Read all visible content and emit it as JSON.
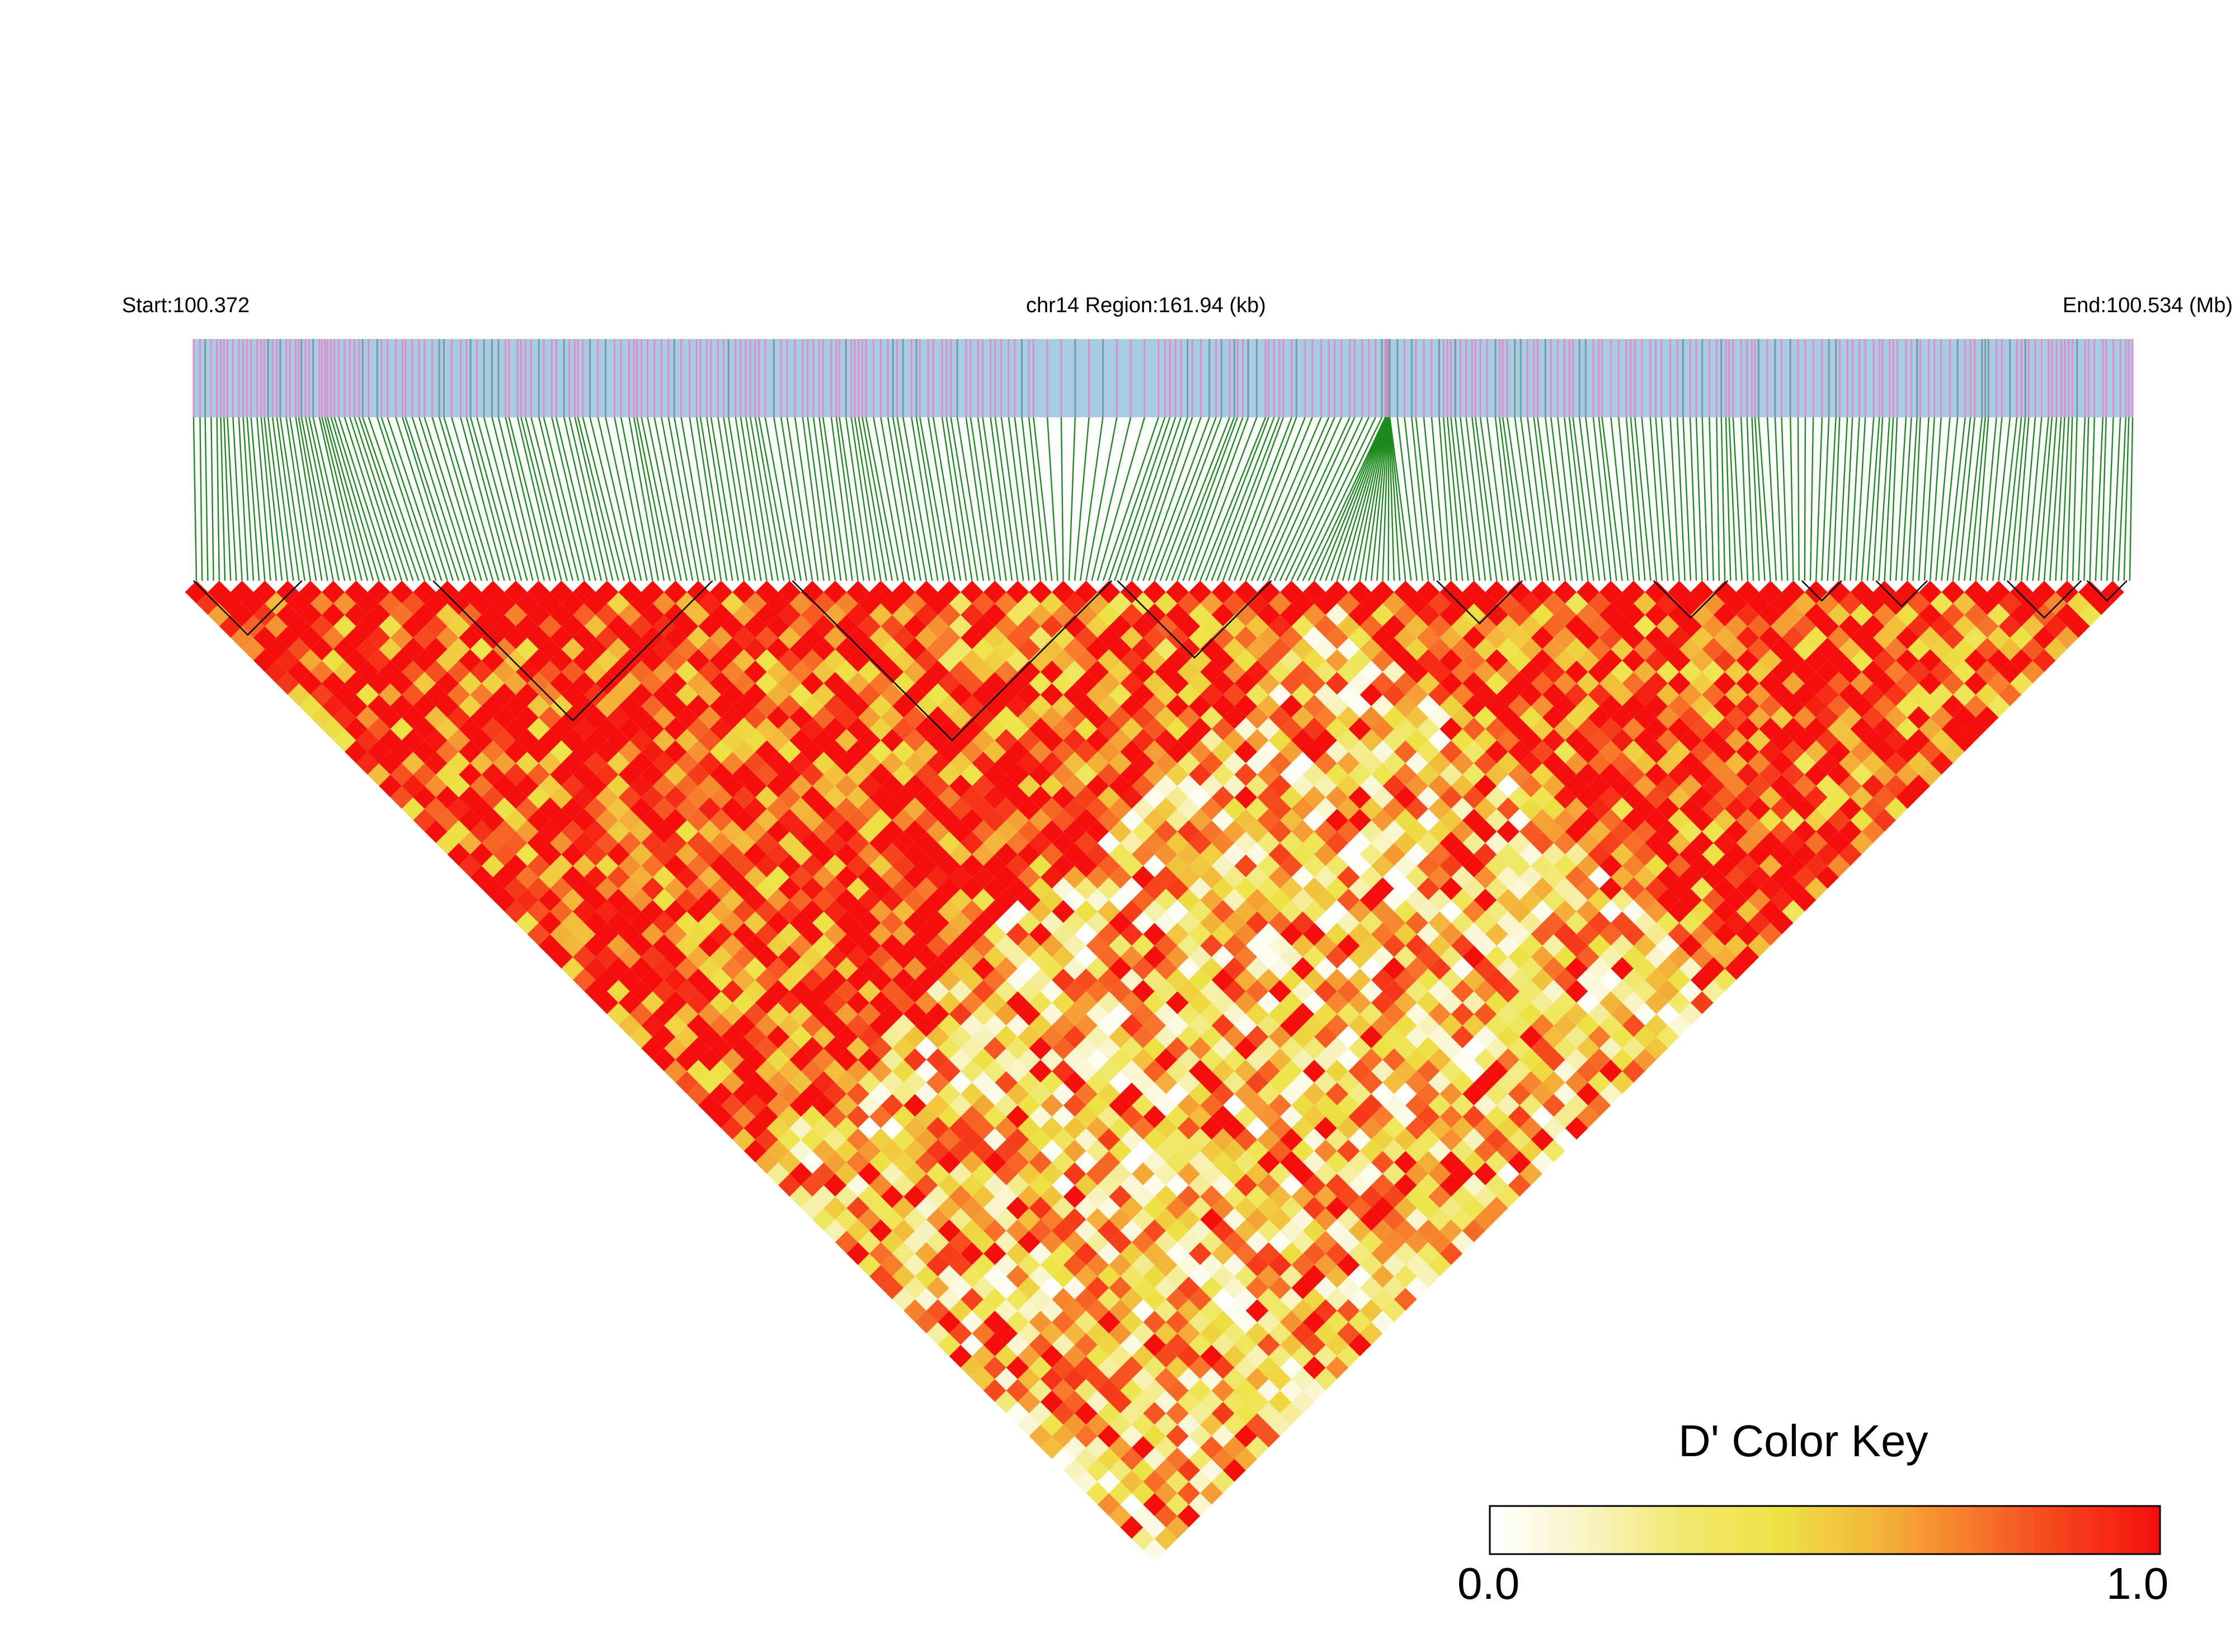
{
  "header": {
    "start_label": "Start:100.372",
    "region_label": "chr14 Region:161.94 (kb)",
    "end_label": "End:100.534 (Mb)"
  },
  "color_key": {
    "title": "D' Color Key",
    "min_label": "0.0",
    "max_label": "1.0",
    "gradient_stops": [
      "#ffffff",
      "#f8f4c6",
      "#f1e870",
      "#ede345",
      "#f3b83b",
      "#f77b2c",
      "#f5401b",
      "#f40f0d"
    ]
  },
  "colors": {
    "track_background": "#a6cde2",
    "snp_marker": "#e38cc9",
    "snp_marker_alt": "#7a9aa3",
    "connector_lines": "#1d8a1d",
    "ld_high": "#f41c10",
    "ld_low": "#f7f0a8"
  },
  "chart_data": {
    "type": "heatmap",
    "description_free": true,
    "chromosome": "chr14",
    "start_mb": 100.372,
    "end_mb": 100.534,
    "region_kb": 161.94,
    "metric": "D'",
    "value_range": [
      0.0,
      1.0
    ],
    "approx_snp_count": 340,
    "ld_blocks_snp_index_ranges": [
      [
        0,
        18
      ],
      [
        42,
        90
      ],
      [
        105,
        160
      ],
      [
        162,
        188
      ],
      [
        218,
        232
      ],
      [
        256,
        268
      ],
      [
        282,
        288
      ],
      [
        295,
        303
      ],
      [
        318,
        330
      ],
      [
        332,
        338
      ]
    ]
  }
}
